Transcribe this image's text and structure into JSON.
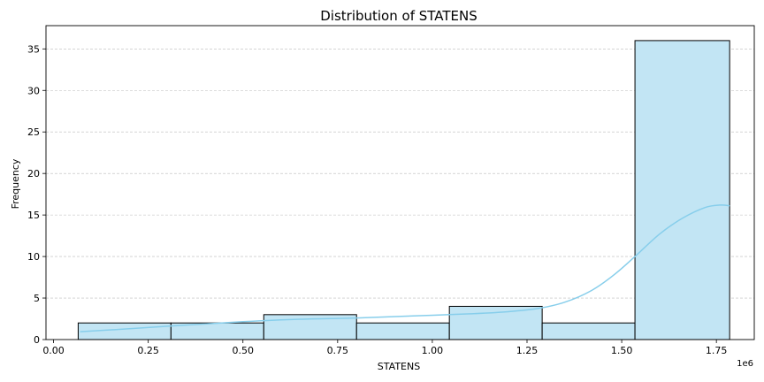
{
  "chart_data": {
    "type": "bar",
    "title": "Distribution of STATENS",
    "xlabel": "STATENS",
    "ylabel": "Frequency",
    "x_offset_label": "1e6",
    "xlim": [
      -0.02,
      1.85
    ],
    "ylim": [
      0,
      37.8
    ],
    "grid": "y-dashed",
    "bins": [
      {
        "x0": 0.065,
        "x1": 0.31,
        "count": 2
      },
      {
        "x0": 0.31,
        "x1": 0.555,
        "count": 2
      },
      {
        "x0": 0.555,
        "x1": 0.8,
        "count": 3
      },
      {
        "x0": 0.8,
        "x1": 1.045,
        "count": 2
      },
      {
        "x0": 1.045,
        "x1": 1.29,
        "count": 4
      },
      {
        "x0": 1.29,
        "x1": 1.535,
        "count": 2
      },
      {
        "x0": 1.535,
        "x1": 1.785,
        "count": 36
      }
    ],
    "kde": [
      [
        0.07,
        0.95
      ],
      [
        0.2,
        1.3
      ],
      [
        0.35,
        1.75
      ],
      [
        0.5,
        2.15
      ],
      [
        0.65,
        2.45
      ],
      [
        0.8,
        2.6
      ],
      [
        0.95,
        2.85
      ],
      [
        1.1,
        3.1
      ],
      [
        1.2,
        3.35
      ],
      [
        1.28,
        3.75
      ],
      [
        1.35,
        4.5
      ],
      [
        1.42,
        5.9
      ],
      [
        1.48,
        7.8
      ],
      [
        1.535,
        10.0
      ],
      [
        1.6,
        12.7
      ],
      [
        1.66,
        14.6
      ],
      [
        1.72,
        15.9
      ],
      [
        1.76,
        16.2
      ],
      [
        1.785,
        16.1
      ]
    ],
    "xticks": [
      {
        "value": 0.0,
        "label": "0.00"
      },
      {
        "value": 0.25,
        "label": "0.25"
      },
      {
        "value": 0.5,
        "label": "0.50"
      },
      {
        "value": 0.75,
        "label": "0.75"
      },
      {
        "value": 1.0,
        "label": "1.00"
      },
      {
        "value": 1.25,
        "label": "1.25"
      },
      {
        "value": 1.5,
        "label": "1.50"
      },
      {
        "value": 1.75,
        "label": "1.75"
      }
    ],
    "yticks": [
      {
        "value": 0,
        "label": "0"
      },
      {
        "value": 5,
        "label": "5"
      },
      {
        "value": 10,
        "label": "10"
      },
      {
        "value": 15,
        "label": "15"
      },
      {
        "value": 20,
        "label": "20"
      },
      {
        "value": 25,
        "label": "25"
      },
      {
        "value": 30,
        "label": "30"
      },
      {
        "value": 35,
        "label": "35"
      }
    ],
    "colors": {
      "bar_fill": "#c2e5f4",
      "bar_edge": "#000000",
      "kde_line": "#87ceeb",
      "grid": "#bbbbbb",
      "axis": "#000000"
    }
  }
}
